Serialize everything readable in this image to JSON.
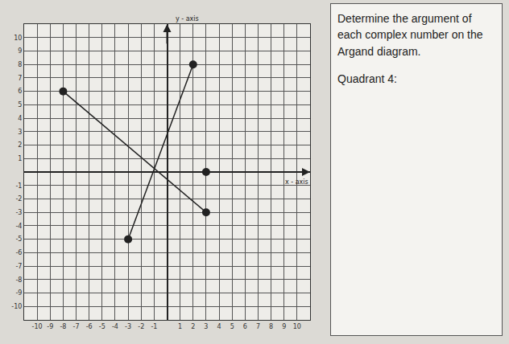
{
  "chart_data": {
    "type": "scatter",
    "x_label": "x - axis",
    "y_label": "y - axis",
    "series": [
      {
        "x": [
          -8,
          3
        ],
        "y": [
          6,
          -3
        ],
        "color": "#222222",
        "marker": "circle",
        "line_style": "solid"
      },
      {
        "x": [
          2,
          -3
        ],
        "y": [
          8,
          -5
        ],
        "color": "#222222",
        "marker": "circle",
        "line_style": "solid"
      },
      {
        "x": [
          3
        ],
        "y": [
          0
        ],
        "color": "#222222",
        "marker": "circle"
      }
    ],
    "xlim": [
      -11,
      11
    ],
    "ylim": [
      -11,
      11
    ],
    "xticks": [
      -10,
      -9,
      -8,
      -7,
      -6,
      -5,
      -4,
      -3,
      -2,
      -1,
      1,
      2,
      3,
      4,
      5,
      6,
      7,
      8,
      9,
      10
    ],
    "yticks": [
      -10,
      -9,
      -8,
      -7,
      -6,
      -5,
      -4,
      -3,
      -2,
      -1,
      1,
      2,
      3,
      4,
      5,
      6,
      7,
      8,
      9,
      10
    ],
    "grid": true
  },
  "side_panel": {
    "question": "Determine the argument of each complex number on the Argand diagram.",
    "heading": "Quadrant 4:"
  }
}
